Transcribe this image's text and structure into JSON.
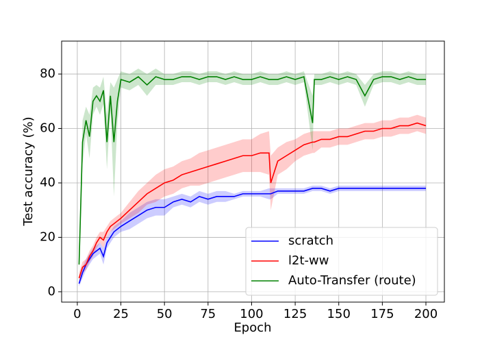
{
  "chart_data": {
    "type": "line",
    "x_label": "Epoch",
    "y_label": "Test accuracy (%)",
    "x": [
      1,
      3,
      5,
      7,
      9,
      11,
      13,
      15,
      17,
      19,
      21,
      23,
      25,
      30,
      35,
      40,
      45,
      50,
      55,
      60,
      65,
      70,
      75,
      80,
      85,
      90,
      95,
      100,
      105,
      110,
      111,
      115,
      120,
      125,
      130,
      135,
      136,
      140,
      145,
      150,
      155,
      160,
      165,
      170,
      175,
      180,
      185,
      190,
      195,
      200
    ],
    "series": [
      {
        "name": "scratch",
        "color": "#0000ff",
        "values": [
          3,
          7,
          10,
          12,
          14,
          15,
          16,
          13,
          18,
          20,
          22,
          23,
          24,
          26,
          28,
          30,
          31,
          31,
          33,
          34,
          33,
          35,
          34,
          35,
          35,
          35,
          36,
          36,
          36,
          36,
          36,
          37,
          37,
          37,
          37,
          38,
          38,
          38,
          37,
          38,
          38,
          38,
          38,
          38,
          38,
          38,
          38,
          38,
          38,
          38
        ],
        "spread": [
          1,
          2,
          2,
          2,
          2,
          2,
          2,
          3,
          2,
          2,
          2,
          2,
          2,
          3,
          3,
          3,
          3,
          3,
          2,
          2,
          2,
          2,
          2,
          2,
          2,
          1,
          1,
          1,
          1,
          2,
          2,
          1,
          1,
          1,
          1,
          1,
          1,
          1,
          1,
          1,
          1,
          1,
          1,
          1,
          1,
          1,
          1,
          1,
          1,
          1
        ]
      },
      {
        "name": "l2t-ww",
        "color": "#ff0000",
        "values": [
          5,
          9,
          10,
          13,
          15,
          18,
          20,
          19,
          22,
          24,
          25,
          26,
          27,
          30,
          33,
          36,
          38,
          40,
          41,
          43,
          44,
          45,
          46,
          47,
          48,
          49,
          50,
          50,
          51,
          51,
          40,
          48,
          50,
          52,
          54,
          55,
          55,
          56,
          56,
          57,
          57,
          58,
          59,
          59,
          60,
          60,
          61,
          61,
          62,
          61
        ],
        "spread": [
          2,
          2,
          2,
          2,
          2,
          2,
          2,
          3,
          2,
          2,
          2,
          2,
          2,
          3,
          4,
          4,
          5,
          5,
          5,
          5,
          5,
          6,
          6,
          6,
          6,
          6,
          6,
          6,
          7,
          8,
          10,
          5,
          5,
          4,
          4,
          4,
          4,
          3,
          3,
          3,
          3,
          3,
          3,
          3,
          3,
          3,
          3,
          3,
          3,
          3
        ]
      },
      {
        "name": "Auto-Transfer (route)",
        "color": "#008000",
        "values": [
          10,
          55,
          63,
          57,
          70,
          72,
          70,
          74,
          55,
          72,
          55,
          70,
          78,
          77,
          79,
          76,
          79,
          78,
          78,
          79,
          79,
          78,
          79,
          79,
          78,
          79,
          78,
          78,
          79,
          78,
          78,
          78,
          79,
          78,
          79,
          62,
          78,
          78,
          79,
          78,
          79,
          78,
          72,
          78,
          79,
          79,
          78,
          79,
          78,
          78
        ],
        "spread": [
          3,
          8,
          5,
          8,
          5,
          4,
          5,
          5,
          10,
          5,
          20,
          8,
          3,
          3,
          3,
          4,
          3,
          2,
          2,
          2,
          2,
          2,
          2,
          2,
          2,
          2,
          2,
          2,
          2,
          2,
          2,
          2,
          2,
          2,
          2,
          10,
          2,
          2,
          2,
          2,
          2,
          2,
          4,
          2,
          2,
          2,
          2,
          2,
          2,
          2
        ]
      }
    ],
    "xlim": [
      -9,
      210.6
    ],
    "ylim": [
      -3.8,
      92.1
    ],
    "xticks": [
      0,
      25,
      50,
      75,
      100,
      125,
      150,
      175,
      200
    ],
    "yticks": [
      0,
      20,
      40,
      60,
      80
    ],
    "grid": true,
    "legend": "lower right"
  }
}
